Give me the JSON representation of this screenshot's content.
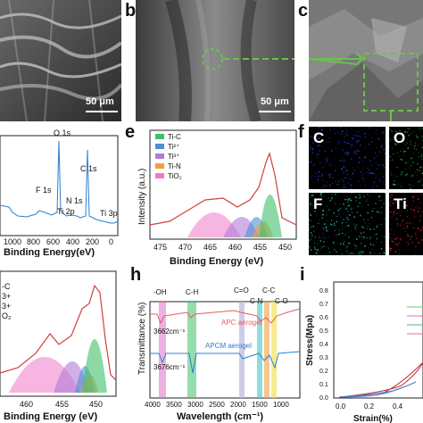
{
  "panels": {
    "a": {
      "letter": "",
      "scale": "50 μm"
    },
    "b": {
      "letter": "b",
      "scale": "50 μm"
    },
    "c": {
      "letter": "c"
    },
    "d": {
      "letter": "",
      "xlabel": "Binding Energy(eV)",
      "xticks": [
        "1000",
        "800",
        "600",
        "400",
        "200",
        "0"
      ],
      "peaks": [
        "O 1s",
        "C 1s",
        "F 1s",
        "N 1s",
        "Ti 2p",
        "Ti 3p"
      ]
    },
    "e": {
      "letter": "e",
      "xlabel": "Binding Energy (eV)",
      "ylabel": "Intensity (a.u.)",
      "xticks": [
        "475",
        "470",
        "465",
        "460",
        "455",
        "450"
      ],
      "legend": [
        {
          "label": "Ti-C",
          "color": "#3fbf6a"
        },
        {
          "label": "Ti²⁺",
          "color": "#4b8fd6"
        },
        {
          "label": "Ti³⁺",
          "color": "#b07cd6"
        },
        {
          "label": "Ti-N",
          "color": "#f0a040"
        },
        {
          "label": "TiO₂",
          "color": "#f07ac8"
        }
      ]
    },
    "f": {
      "letter": "f",
      "maps": [
        {
          "label": "C",
          "color": "#2a3fd0"
        },
        {
          "label": "O",
          "color": "#28b04a"
        },
        {
          "label": "F",
          "color": "#28b0a0"
        },
        {
          "label": "Ti",
          "color": "#d02020"
        }
      ]
    },
    "g": {
      "xlabel": "Binding Energy (eV)",
      "xticks": [
        "460",
        "455",
        "450"
      ],
      "legend_fragments": [
        "-C",
        "3+",
        "3+",
        "O₂"
      ]
    },
    "h": {
      "letter": "h",
      "xlabel": "Wavelength (cm⁻¹)",
      "ylabel": "Transmittance (%)",
      "xticks": [
        "4000",
        "3500",
        "3000",
        "2500",
        "2000",
        "1500",
        "1000"
      ],
      "bands": [
        "-OH",
        "C-H",
        "C=O",
        "C-N",
        "C-C",
        "C-O"
      ],
      "series": [
        {
          "name": "APC aerogel",
          "color": "#e06060"
        },
        {
          "name": "APCM aerogel",
          "color": "#2a7fd0"
        }
      ],
      "annotations": [
        "3662cm⁻¹",
        "3676cm⁻¹"
      ]
    },
    "i": {
      "letter": "i",
      "xlabel": "Strain(%)",
      "ylabel": "Stress(Mpa)",
      "xticks": [
        "0.0",
        "0.2",
        "0.4"
      ],
      "yticks": [
        "0.0",
        "0.1",
        "0.2",
        "0.3",
        "0.4",
        "0.5",
        "0.6",
        "0.7",
        "0.8"
      ]
    }
  }
}
